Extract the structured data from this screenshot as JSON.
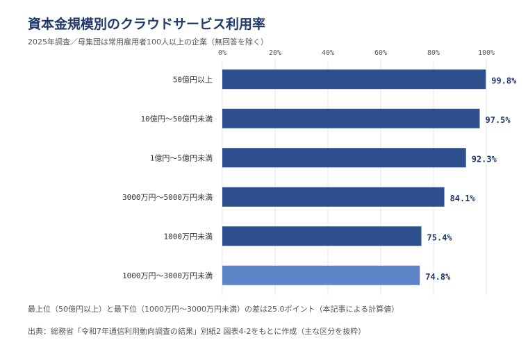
{
  "chart_data": {
    "type": "bar",
    "orientation": "horizontal",
    "title": "資本金規模別のクラウドサービス利用率",
    "subtitle": "2025年調査／母集団は常用雇用者100人以上の企業（無回答を除く）",
    "categories": [
      "50億円以上",
      "10億円〜50億円未満",
      "1億円〜5億円未満",
      "3000万円〜5000万円未満",
      "1000万円未満",
      "1000万円〜3000万円未満"
    ],
    "values": [
      99.8,
      97.5,
      92.3,
      84.1,
      75.4,
      74.8
    ],
    "value_labels": [
      "99.8%",
      "97.5%",
      "92.3%",
      "84.1%",
      "75.4%",
      "74.8%"
    ],
    "xlim": [
      0,
      100
    ],
    "x_ticks": [
      "0%",
      "20%",
      "40%",
      "60%",
      "80%",
      "100%"
    ],
    "x_tick_values": [
      0,
      20,
      40,
      60,
      80,
      100
    ],
    "x_axis_position": "top",
    "grid": true,
    "bar_color": "#2d4f8e",
    "highlight_color": "#5b84c8",
    "highlight_index": 5
  },
  "note": "最上位（50億円以上）と最下位（1000万円〜3000万円未満）の差は25.0ポイント（本記事による計算値）",
  "source": "出典：総務省「令和7年通信利用動向調査の結果」別紙2 図表4-2をもとに作成（主な区分を抜粋）"
}
